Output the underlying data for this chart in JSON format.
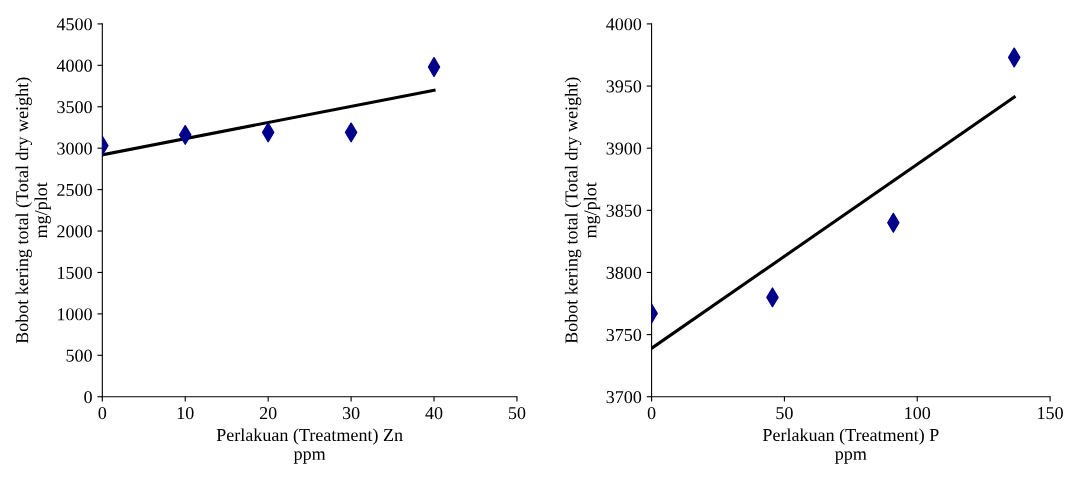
{
  "chart_data": [
    {
      "type": "scatter",
      "xlabel": "Perlakuan (Treatment) Zn\nppm",
      "ylabel": "Bobot kering total (Total dry weight)\nmg/plot",
      "xlim": [
        0,
        50
      ],
      "xticks": [
        0,
        10,
        20,
        30,
        40,
        50
      ],
      "ylim": [
        0,
        4500
      ],
      "yticks": [
        0,
        500,
        1000,
        1500,
        2000,
        2500,
        3000,
        3500,
        4000,
        4500
      ],
      "grid": false,
      "legend": false,
      "series": [
        {
          "marker": "diamond",
          "color": "#00008b",
          "x": [
            0,
            10,
            20,
            30,
            40
          ],
          "values": [
            3030,
            3160,
            3190,
            3190,
            3980
          ]
        },
        {
          "type": "line",
          "marker": "none",
          "line_style": "solid",
          "color": "#000000",
          "x": [
            0,
            40
          ],
          "values": [
            2920,
            3700
          ]
        }
      ]
    },
    {
      "type": "scatter",
      "xlabel": "Perlakuan (Treatment) P\nppm",
      "ylabel": "Bobot kering total (Total dry weight)\nmg/plot",
      "xlim": [
        0,
        150
      ],
      "xticks": [
        0,
        50,
        100,
        150
      ],
      "ylim": [
        3700,
        4000
      ],
      "yticks": [
        3700,
        3750,
        3800,
        3850,
        3900,
        3950,
        4000
      ],
      "grid": false,
      "legend": false,
      "series": [
        {
          "marker": "diamond",
          "color": "#00008b",
          "x": [
            0,
            45.5,
            91,
            136.5
          ],
          "values": [
            3767,
            3780,
            3840,
            3973
          ]
        },
        {
          "type": "line",
          "marker": "none",
          "line_style": "solid",
          "color": "#000000",
          "x": [
            0,
            136.5
          ],
          "values": [
            3739,
            3941
          ]
        }
      ]
    }
  ]
}
